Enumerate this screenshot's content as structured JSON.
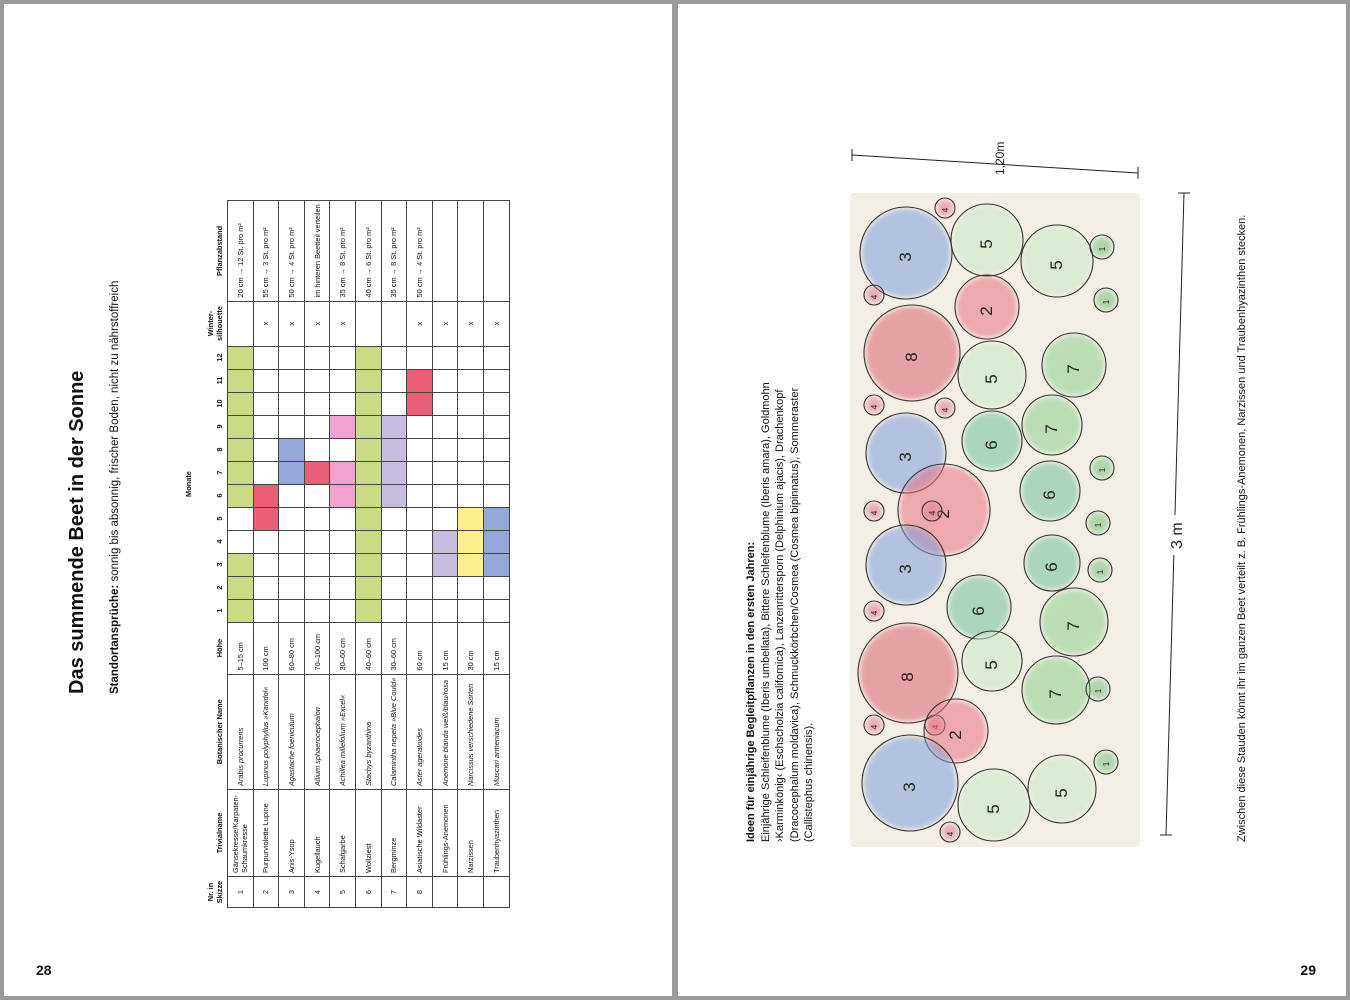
{
  "left_page": {
    "title": "Das summende Beet in der Sonne",
    "subtitle_label": "Standortansprüche:",
    "subtitle_text": " sonnig bis absonnig, frischer Boden, nicht zu nährstoffreich",
    "page_number": "28",
    "table": {
      "months_label": "Monate",
      "headers": {
        "nr": "Nr. in Skizze",
        "trivial": "Trivialname",
        "botanical": "Botanischer Name",
        "height": "Höhe",
        "winter": "Winter-silhouette",
        "spacing": "Pflanzabstand"
      },
      "months": [
        "1",
        "2",
        "3",
        "4",
        "5",
        "6",
        "7",
        "8",
        "9",
        "10",
        "11",
        "12"
      ],
      "rows": [
        {
          "nr": "1",
          "trivial": "Gänsekresse/Karpaten-Schaumkresse",
          "botanical": "Arabis procurrens",
          "height": "5–15 cm",
          "winter": "",
          "spacing": "20 cm → 12 St. pro m²",
          "bloom": [
            1,
            1,
            1,
            0,
            0,
            1,
            1,
            1,
            1,
            1,
            1,
            1
          ],
          "color": "#c8dc86"
        },
        {
          "nr": "2",
          "trivial": "Purpurviolette Lupine",
          "botanical": "Lupinus polyphyllus »Kanidol«",
          "height": "100 cm",
          "winter": "x",
          "spacing": "55 cm → 3 St. pro m²",
          "bloom": [
            0,
            0,
            0,
            0,
            1,
            1,
            0,
            0,
            0,
            0,
            0,
            0
          ],
          "color": "#ea5f78"
        },
        {
          "nr": "3",
          "trivial": "Anis-Ysop",
          "botanical": "Agastache foeniculum",
          "height": "60–80 cm",
          "winter": "x",
          "spacing": "50 cm → 4 St. pro m²",
          "bloom": [
            0,
            0,
            0,
            0,
            0,
            0,
            1,
            1,
            0,
            0,
            0,
            0
          ],
          "color": "#93a8d7"
        },
        {
          "nr": "4",
          "trivial": "Kugellauch",
          "botanical": "Allium sphaerocephalon",
          "height": "70–100 cm",
          "winter": "x",
          "spacing": "im hinteren Beetteil verteilen",
          "bloom": [
            0,
            0,
            0,
            0,
            0,
            0,
            1,
            0,
            0,
            0,
            0,
            0
          ],
          "color": "#ea5f78"
        },
        {
          "nr": "5",
          "trivial": "Schafgarbe",
          "botanical": "Achillea millefolium »Excel«",
          "height": "30–60 cm",
          "winter": "x",
          "spacing": "35 cm → 8 St. pro m²",
          "bloom": [
            0,
            0,
            0,
            0,
            0,
            1,
            1,
            0,
            1,
            0,
            0,
            0
          ],
          "color": "#f0a2cc"
        },
        {
          "nr": "6",
          "trivial": "Wollziest",
          "botanical": "Stachys byzanthina",
          "height": "40–60 cm",
          "winter": "",
          "spacing": "40 cm → 6 St. pro m²",
          "bloom": [
            1,
            1,
            1,
            1,
            1,
            1,
            1,
            1,
            1,
            1,
            1,
            1
          ],
          "color": "#c8dc86"
        },
        {
          "nr": "7",
          "trivial": "Bergminze",
          "botanical": "Calamintha nepeta »Blue Could«",
          "height": "30–60 cm",
          "winter": "",
          "spacing": "35 cm → 8 St. pro m²",
          "bloom": [
            0,
            0,
            0,
            0,
            0,
            1,
            1,
            1,
            1,
            0,
            0,
            0
          ],
          "color": "#c8bce0"
        },
        {
          "nr": "8",
          "trivial": "Asiatische Wildaster",
          "botanical": "Aster ageratoides",
          "height": "60 cm",
          "winter": "x",
          "spacing": "50 cm → 4 St. pro m²",
          "bloom": [
            0,
            0,
            0,
            0,
            0,
            0,
            0,
            0,
            0,
            1,
            1,
            0
          ],
          "color": "#ea5f78"
        },
        {
          "nr": "",
          "trivial": "Frühlings-Anemonen",
          "botanical": "Anemone blanda weiß/blau/rosa",
          "height": "15 cm",
          "winter": "x",
          "spacing": "",
          "bloom": [
            0,
            0,
            1,
            1,
            0,
            0,
            0,
            0,
            0,
            0,
            0,
            0
          ],
          "color": "#c8bce0"
        },
        {
          "nr": "",
          "trivial": "Narzissen",
          "botanical": "Narcissus verschiedene Sorten",
          "height": "30 cm",
          "winter": "x",
          "spacing": "",
          "bloom": [
            0,
            0,
            1,
            1,
            1,
            0,
            0,
            0,
            0,
            0,
            0,
            0
          ],
          "color": "#fdf08c"
        },
        {
          "nr": "",
          "trivial": "Traubenhyazinthen",
          "botanical": "Muscari armeniacum",
          "height": "15 cm",
          "winter": "x",
          "spacing": "",
          "bloom": [
            0,
            0,
            1,
            1,
            1,
            0,
            0,
            0,
            0,
            0,
            0,
            0
          ],
          "color": "#93a8d7"
        }
      ]
    }
  },
  "right_page": {
    "page_number": "29",
    "ideas_title": "Ideen für einjährige Begleitpflanzen in den ersten Jahren:",
    "ideas_text": "Einjährige Schleifenblume (Iberis umbellata), Bittere Schleifenblume (Iberis amara), Goldmohn ›Karminkönig‹ (Eschscholzia californica), Lanzenrittersporn (Delphinium ajacis), Drachenkopf (Dracocephalum moldavica), Schmuckkörbchen/Cosmea (Cosmea bipinnatus), Sommeraster (Callistephus chinensis).",
    "footer_note": "Zwischen diese Stauden könnt ihr im ganzen Beet verteilt z. B. Frühlings-Anemonen, Narzissen und Traubenhyazinthen stecken.",
    "sketch": {
      "width_label": "1,20m",
      "length_label": "3 m",
      "colors": {
        "1": "#7cc07c",
        "2": "#e8707f",
        "3": "#7f9ed8",
        "4": "#e07a88",
        "5": "#c5e6c5",
        "6": "#6fc0a0",
        "7": "#8cd08c",
        "8": "#d9656f"
      }
    }
  }
}
